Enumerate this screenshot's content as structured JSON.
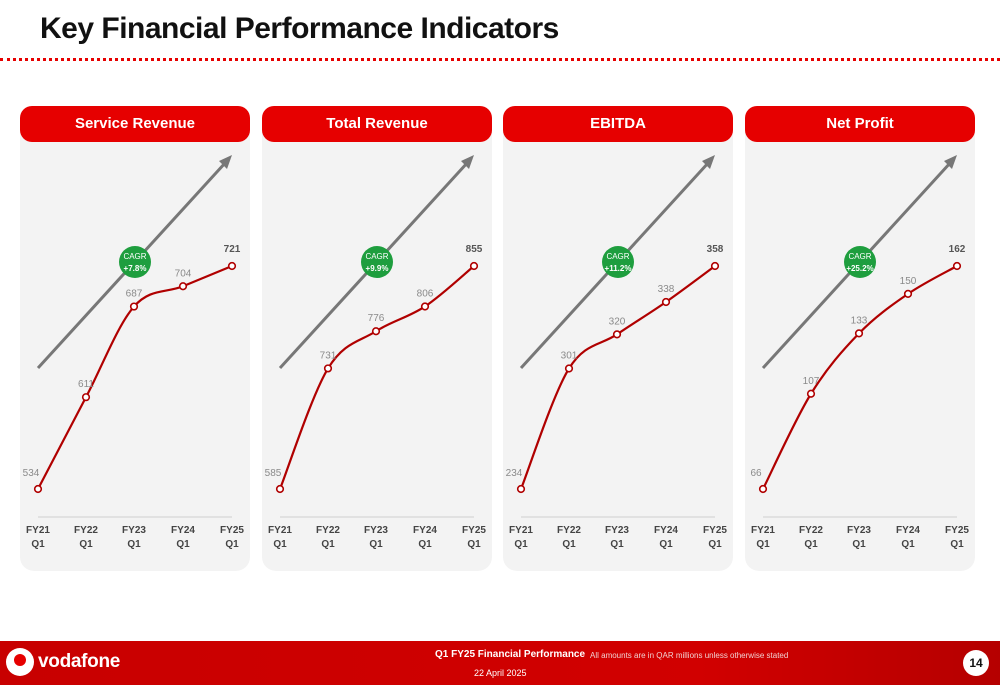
{
  "title": "Key Financial Performance Indicators",
  "colors": {
    "accent": "#e60000",
    "line": "#b00000",
    "arrow": "#777777",
    "cagr_badge": "#1e9e3e",
    "panel_bg": "#f3f3f3"
  },
  "footer": {
    "brand": "vodafone",
    "report_title": "Q1 FY25 Financial Performance",
    "date": "22 April 2025",
    "note": "All amounts are in QAR millions unless otherwise stated",
    "page_number": "14"
  },
  "chart_data": [
    {
      "type": "line",
      "title": "Service Revenue",
      "categories": [
        "FY21 Q1",
        "FY22 Q1",
        "FY23 Q1",
        "FY24 Q1",
        "FY25 Q1"
      ],
      "values": [
        534,
        611,
        687,
        704,
        721
      ],
      "cagr_label": "CAGR",
      "cagr_value": "+7.8%"
    },
    {
      "type": "line",
      "title": "Total Revenue",
      "categories": [
        "FY21 Q1",
        "FY22 Q1",
        "FY23 Q1",
        "FY24 Q1",
        "FY25 Q1"
      ],
      "values": [
        585,
        731,
        776,
        806,
        855
      ],
      "cagr_label": "CAGR",
      "cagr_value": "+9.9%"
    },
    {
      "type": "line",
      "title": "EBITDA",
      "categories": [
        "FY21 Q1",
        "FY22 Q1",
        "FY23 Q1",
        "FY24 Q1",
        "FY25 Q1"
      ],
      "values": [
        234,
        301,
        320,
        338,
        358
      ],
      "cagr_label": "CAGR",
      "cagr_value": "+11.2%"
    },
    {
      "type": "line",
      "title": "Net Profit",
      "categories": [
        "FY21 Q1",
        "FY22 Q1",
        "FY23 Q1",
        "FY24 Q1",
        "FY25 Q1"
      ],
      "values": [
        66,
        107,
        133,
        150,
        162
      ],
      "cagr_label": "CAGR",
      "cagr_value": "+25.2%"
    }
  ]
}
